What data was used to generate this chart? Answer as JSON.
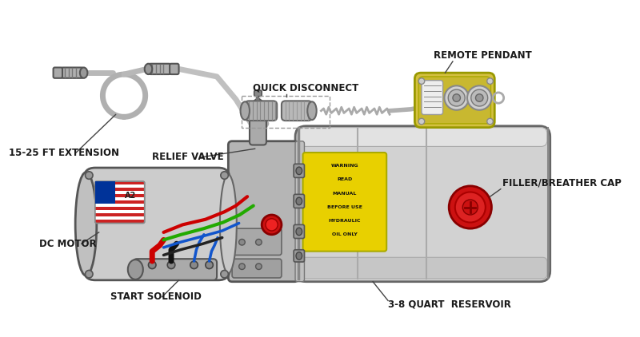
{
  "bg_color": "#ffffff",
  "label_color": "#1a1a1a",
  "label_fontsize": 8.5,
  "labels": {
    "extension": "15-25 FT EXTENSION",
    "relief_valve": "RELIEF VALVE",
    "dc_motor": "DC MOTOR",
    "start_solenoid": "START SOLENOID",
    "quick_disconnect": "QUICK DISCONNECT",
    "remote_pendant": "REMOTE PENDANT",
    "filler_cap": "FILLER/BREATHER CAP",
    "reservoir": "3-8 QUART  RESERVOIR"
  },
  "colors": {
    "body_fill": "#d4d4d4",
    "body_stroke": "#555555",
    "reservoir_fill": "#d8d8d8",
    "motor_fill": "#cccccc",
    "yellow_label": "#e8d000",
    "pendant_fill": "#c8b830",
    "pendant_body": "#d4c040",
    "red_cap": "#cc1111",
    "connector_gray": "#aaaaaa",
    "wire_red": "#cc0000",
    "wire_green": "#22aa00",
    "wire_blue": "#1155cc",
    "annotation_line": "#444444",
    "dashed_box": "#888888",
    "dark_gray": "#666666",
    "mid_gray": "#999999",
    "light_gray": "#bbbbbb"
  }
}
